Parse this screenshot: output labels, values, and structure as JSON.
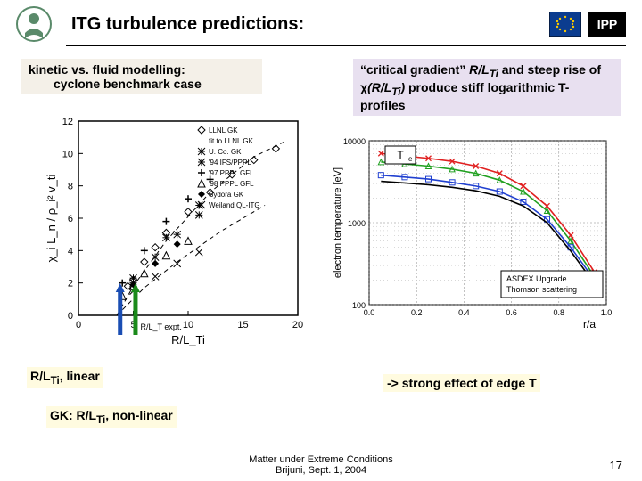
{
  "header": {
    "title": "ITG turbulence predictions:",
    "ipp_label": "IPP"
  },
  "box_left": {
    "line1": "kinetic vs. fluid modelling:",
    "line2": "cyclone benchmark case"
  },
  "box_right": {
    "text_html": "“critical gradient” <i>R/L<sub>Ti</sub></i> and steep rise of χ<i>(R/L<sub>Ti</sub>)</i> produce stiff logarithmic T-profiles"
  },
  "chart_left": {
    "type": "scatter",
    "xlabel": "R/L_Ti",
    "ylabel": "χ_i L_n / ρ_i² v_ti",
    "xlim": [
      0,
      20
    ],
    "ylim": [
      0,
      12
    ],
    "xtick_step": 5,
    "ytick_step": 2,
    "background_color": "#ffffff",
    "axis_color": "#000000",
    "label_fontsize": 12,
    "rlt_expt_label": "R/L_T expt.",
    "series": [
      {
        "name": "LLNL GK",
        "marker": "diamond",
        "color": "#000",
        "pts": [
          [
            4.5,
            1.8
          ],
          [
            5,
            2.2
          ],
          [
            6,
            3.3
          ],
          [
            7,
            4.2
          ],
          [
            8,
            5.1
          ],
          [
            10,
            6.4
          ],
          [
            12,
            7.6
          ],
          [
            14,
            8.7
          ],
          [
            16,
            9.6
          ],
          [
            18,
            10.3
          ]
        ]
      },
      {
        "name": "fit to LLNL GK",
        "marker": "line",
        "color": "#000",
        "dash": true
      },
      {
        "name": "U. Co. GK",
        "marker": "star",
        "color": "#000",
        "pts": [
          [
            5,
            2.0
          ],
          [
            7,
            3.6
          ],
          [
            9,
            5.0
          ],
          [
            11,
            6.2
          ]
        ]
      },
      {
        "name": "'94 IFS/PPPL",
        "marker": "asterisk",
        "color": "#000",
        "pts": [
          [
            5,
            2.3
          ],
          [
            8,
            4.8
          ],
          [
            11,
            6.8
          ]
        ]
      },
      {
        "name": "'97 PPPL GFL",
        "marker": "plus",
        "color": "#000",
        "pts": [
          [
            4,
            2.0
          ],
          [
            6,
            4.0
          ],
          [
            8,
            5.8
          ],
          [
            10,
            7.2
          ],
          [
            12,
            8.4
          ]
        ]
      },
      {
        "name": "'98 PPPL GFL",
        "marker": "triangle",
        "color": "#000",
        "pts": [
          [
            4,
            1.2
          ],
          [
            5,
            1.8
          ],
          [
            6,
            2.6
          ],
          [
            8,
            3.7
          ],
          [
            10,
            4.6
          ]
        ]
      },
      {
        "name": "Sydora GK",
        "marker": "filldiamond",
        "color": "#000",
        "pts": [
          [
            5,
            1.9
          ],
          [
            7,
            3.2
          ],
          [
            9,
            4.4
          ]
        ]
      },
      {
        "name": "Weiland QL-ITG",
        "marker": "cross",
        "color": "#000",
        "pts": [
          [
            5,
            1.5
          ],
          [
            7,
            2.4
          ],
          [
            9,
            3.2
          ],
          [
            11,
            3.9
          ]
        ]
      }
    ],
    "critical_lines": [
      {
        "x": 3.8,
        "color": "#1a4db3",
        "width": 5
      },
      {
        "x": 5.2,
        "color": "#1a8a1a",
        "width": 5
      }
    ]
  },
  "chart_right": {
    "type": "line-log",
    "xlabel": "r/a",
    "ylabel": "electron temperature [eV]",
    "title_box": "T_e",
    "xlim": [
      0,
      1
    ],
    "ylim": [
      100,
      10000
    ],
    "xtick_step": 0.2,
    "yticks": [
      100,
      1000,
      10000
    ],
    "background_color": "#ffffff",
    "axis_color": "#000000",
    "grid_color": "#666666",
    "label_fontsize": 11,
    "legend_box": {
      "line1": "ASDEX Upgrade",
      "line2": "Thomson scattering"
    },
    "series": [
      {
        "color": "#e02020",
        "marker": "x",
        "pts": [
          [
            0.05,
            7000
          ],
          [
            0.15,
            6500
          ],
          [
            0.25,
            6100
          ],
          [
            0.35,
            5600
          ],
          [
            0.45,
            4900
          ],
          [
            0.55,
            4000
          ],
          [
            0.65,
            2800
          ],
          [
            0.75,
            1600
          ],
          [
            0.85,
            700
          ],
          [
            0.95,
            250
          ]
        ]
      },
      {
        "color": "#20a020",
        "marker": "triangle",
        "pts": [
          [
            0.05,
            5500
          ],
          [
            0.15,
            5200
          ],
          [
            0.25,
            4900
          ],
          [
            0.35,
            4500
          ],
          [
            0.45,
            4000
          ],
          [
            0.55,
            3300
          ],
          [
            0.65,
            2400
          ],
          [
            0.75,
            1400
          ],
          [
            0.85,
            600
          ],
          [
            0.95,
            220
          ]
        ]
      },
      {
        "color": "#2040d0",
        "marker": "square",
        "pts": [
          [
            0.05,
            3800
          ],
          [
            0.15,
            3600
          ],
          [
            0.25,
            3400
          ],
          [
            0.35,
            3100
          ],
          [
            0.45,
            2800
          ],
          [
            0.55,
            2400
          ],
          [
            0.65,
            1800
          ],
          [
            0.75,
            1100
          ],
          [
            0.85,
            500
          ],
          [
            0.95,
            200
          ]
        ]
      },
      {
        "color": "#000000",
        "marker": "line",
        "pts": [
          [
            0.05,
            3200
          ],
          [
            0.15,
            3050
          ],
          [
            0.25,
            2900
          ],
          [
            0.35,
            2700
          ],
          [
            0.45,
            2450
          ],
          [
            0.55,
            2100
          ],
          [
            0.65,
            1600
          ],
          [
            0.75,
            1000
          ],
          [
            0.85,
            450
          ],
          [
            0.95,
            180
          ]
        ]
      }
    ]
  },
  "annotations": {
    "a1_html": "R/L<sub>Ti</sub>, linear",
    "a2_html": "GK: R/L<sub>Ti</sub>, non-linear",
    "a3": "-> strong effect of edge T"
  },
  "footer": {
    "line1": "Matter under Extreme Conditions",
    "line2": "Brijuni, Sept. 1, 2004",
    "page": "17"
  },
  "colors": {
    "mpg_green": "#5a8a6a",
    "eu_blue": "#0b3c8f",
    "eu_gold": "#f7c600"
  }
}
